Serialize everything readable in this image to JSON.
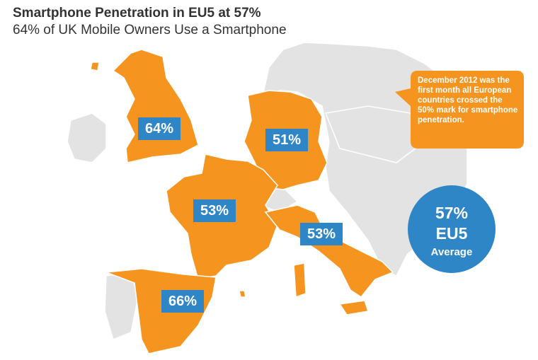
{
  "header": {
    "title": "Smartphone Penetration in EU5 at 57%",
    "subtitle": "64% of UK Mobile Owners Use a Smartphone"
  },
  "labels": [
    {
      "country_label": "64%"
    },
    {
      "country_label": "51%"
    },
    {
      "country_label": "53%"
    },
    {
      "country_label": "53%"
    },
    {
      "country_label": "66%"
    }
  ],
  "callout": "December 2012 was the first month all European countries crossed the 50% mark for smartphone penetration.",
  "average": {
    "value": "57%",
    "region": "EU5",
    "caption": "Average"
  }
}
